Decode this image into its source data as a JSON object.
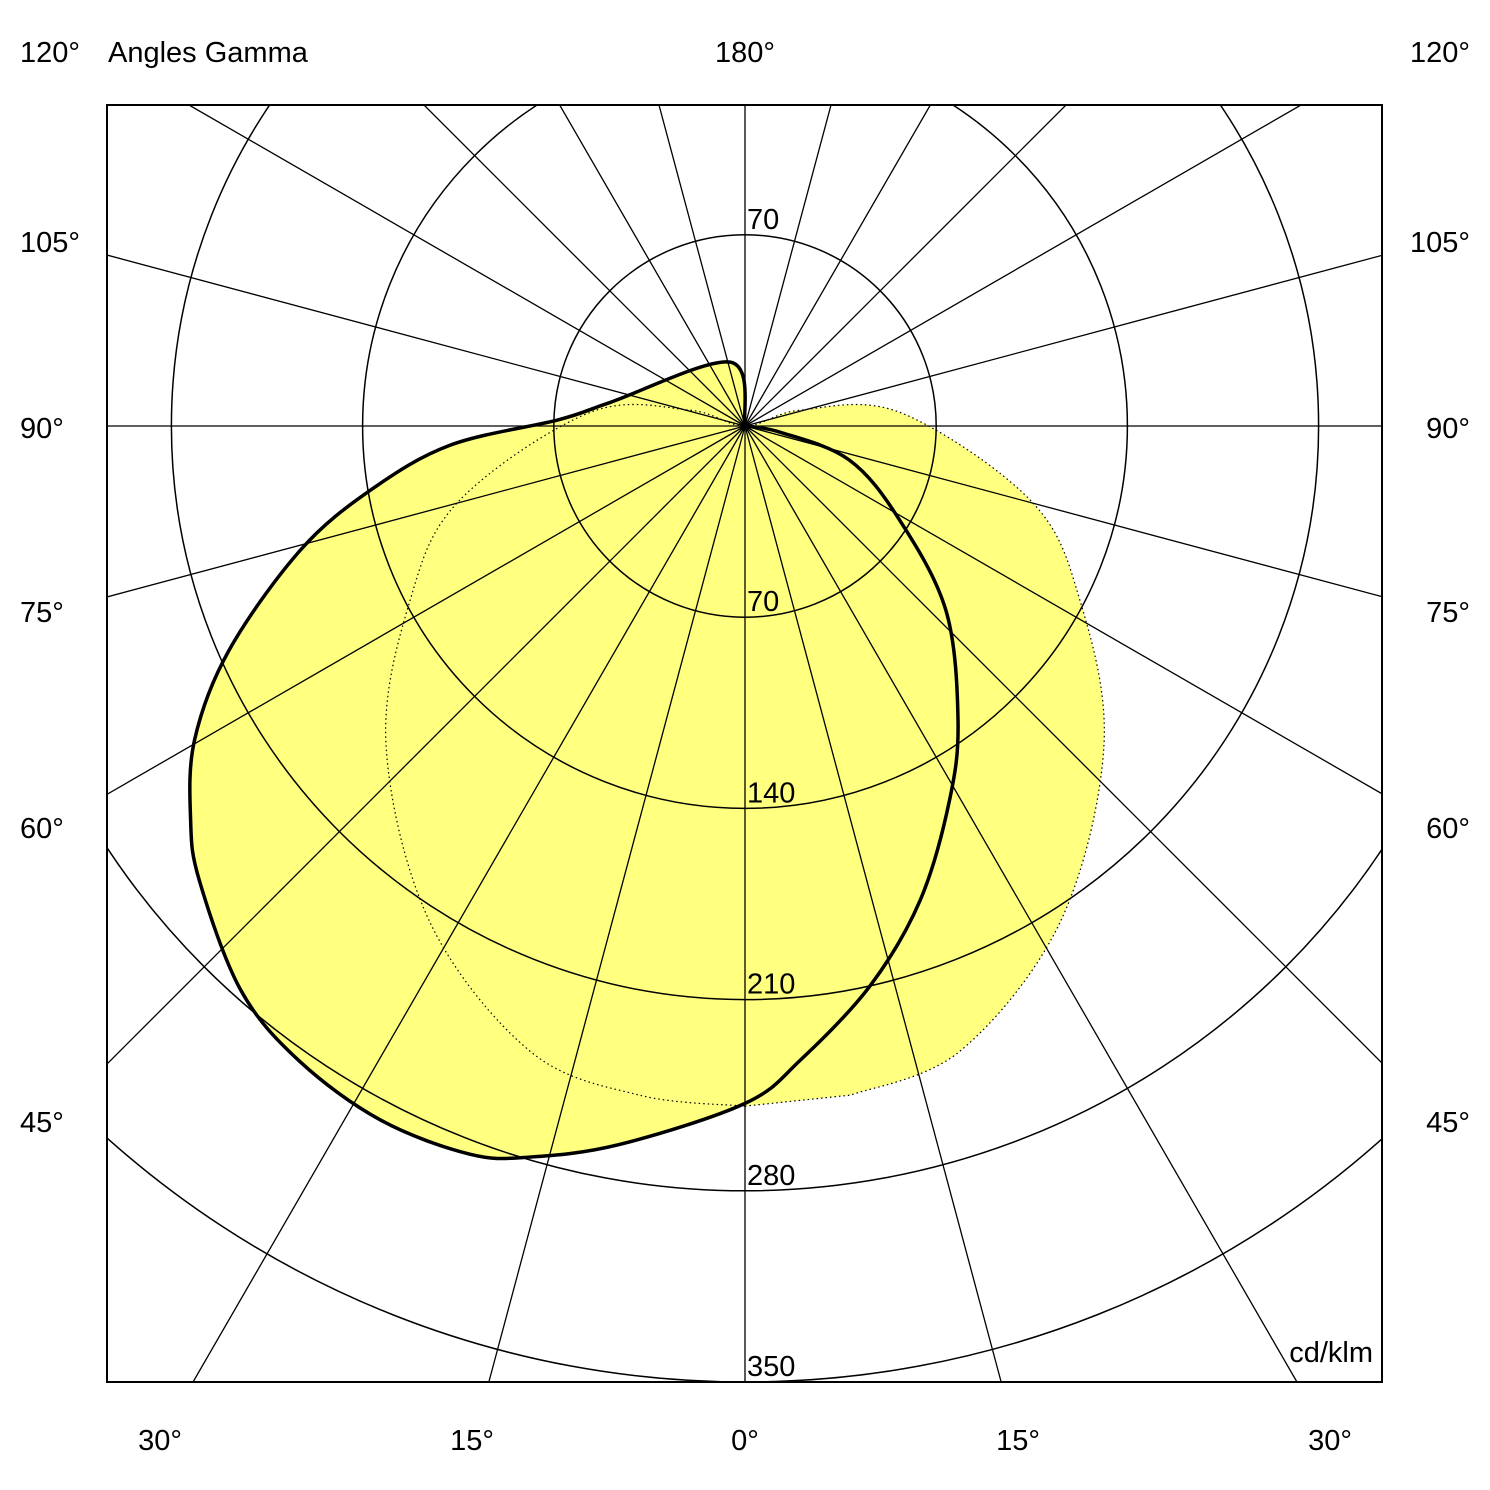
{
  "chart_data": {
    "type": "polar",
    "title": "Angles Gamma",
    "unit_label": "cd/klm",
    "radial_ticks": [
      70,
      140,
      210,
      280,
      350
    ],
    "radial_max": 350,
    "angle_step_deg": 15,
    "top_label": "180°",
    "side_labels": [
      "120°",
      "105°",
      "90°",
      "75°",
      "60°",
      "45°"
    ],
    "bottom_labels": [
      "30°",
      "15°",
      "0°",
      "15°",
      "30°"
    ],
    "fill_color": "#ffff80",
    "curve_color": "#000000",
    "series": [
      {
        "style": "solid",
        "left": {
          "gamma": [
            0,
            9.9,
            16.4,
            20.7,
            27.7,
            35.1,
            41.8,
            50.2,
            54.6,
            60.3,
            66.5,
            74.4,
            80.3,
            86.3,
            92,
            100,
            167,
            180
          ],
          "intensity": [
            248,
            267,
            279,
            285,
            287,
            284,
            277,
            260,
            249,
            232,
            206,
            169,
            139,
            108,
            68,
            50,
            24,
            0
          ]
        },
        "right": {
          "gamma": [
            0,
            5,
            12.6,
            20.3,
            28.7,
            35.9,
            47.4,
            58.8,
            72,
            80,
            90
          ],
          "intensity": [
            248,
            233,
            210,
            185,
            156,
            133,
            100,
            66,
            40,
            13,
            0
          ]
        }
      },
      {
        "style": "dotted",
        "symmetric": true,
        "gamma": [
          0,
          9,
          19,
          32.5,
          48.3,
          62.6,
          75.4,
          95,
          106,
          180
        ],
        "intensity": [
          249,
          248,
          242,
          215,
          176,
          138,
          108,
          57,
          21,
          0
        ]
      }
    ]
  }
}
